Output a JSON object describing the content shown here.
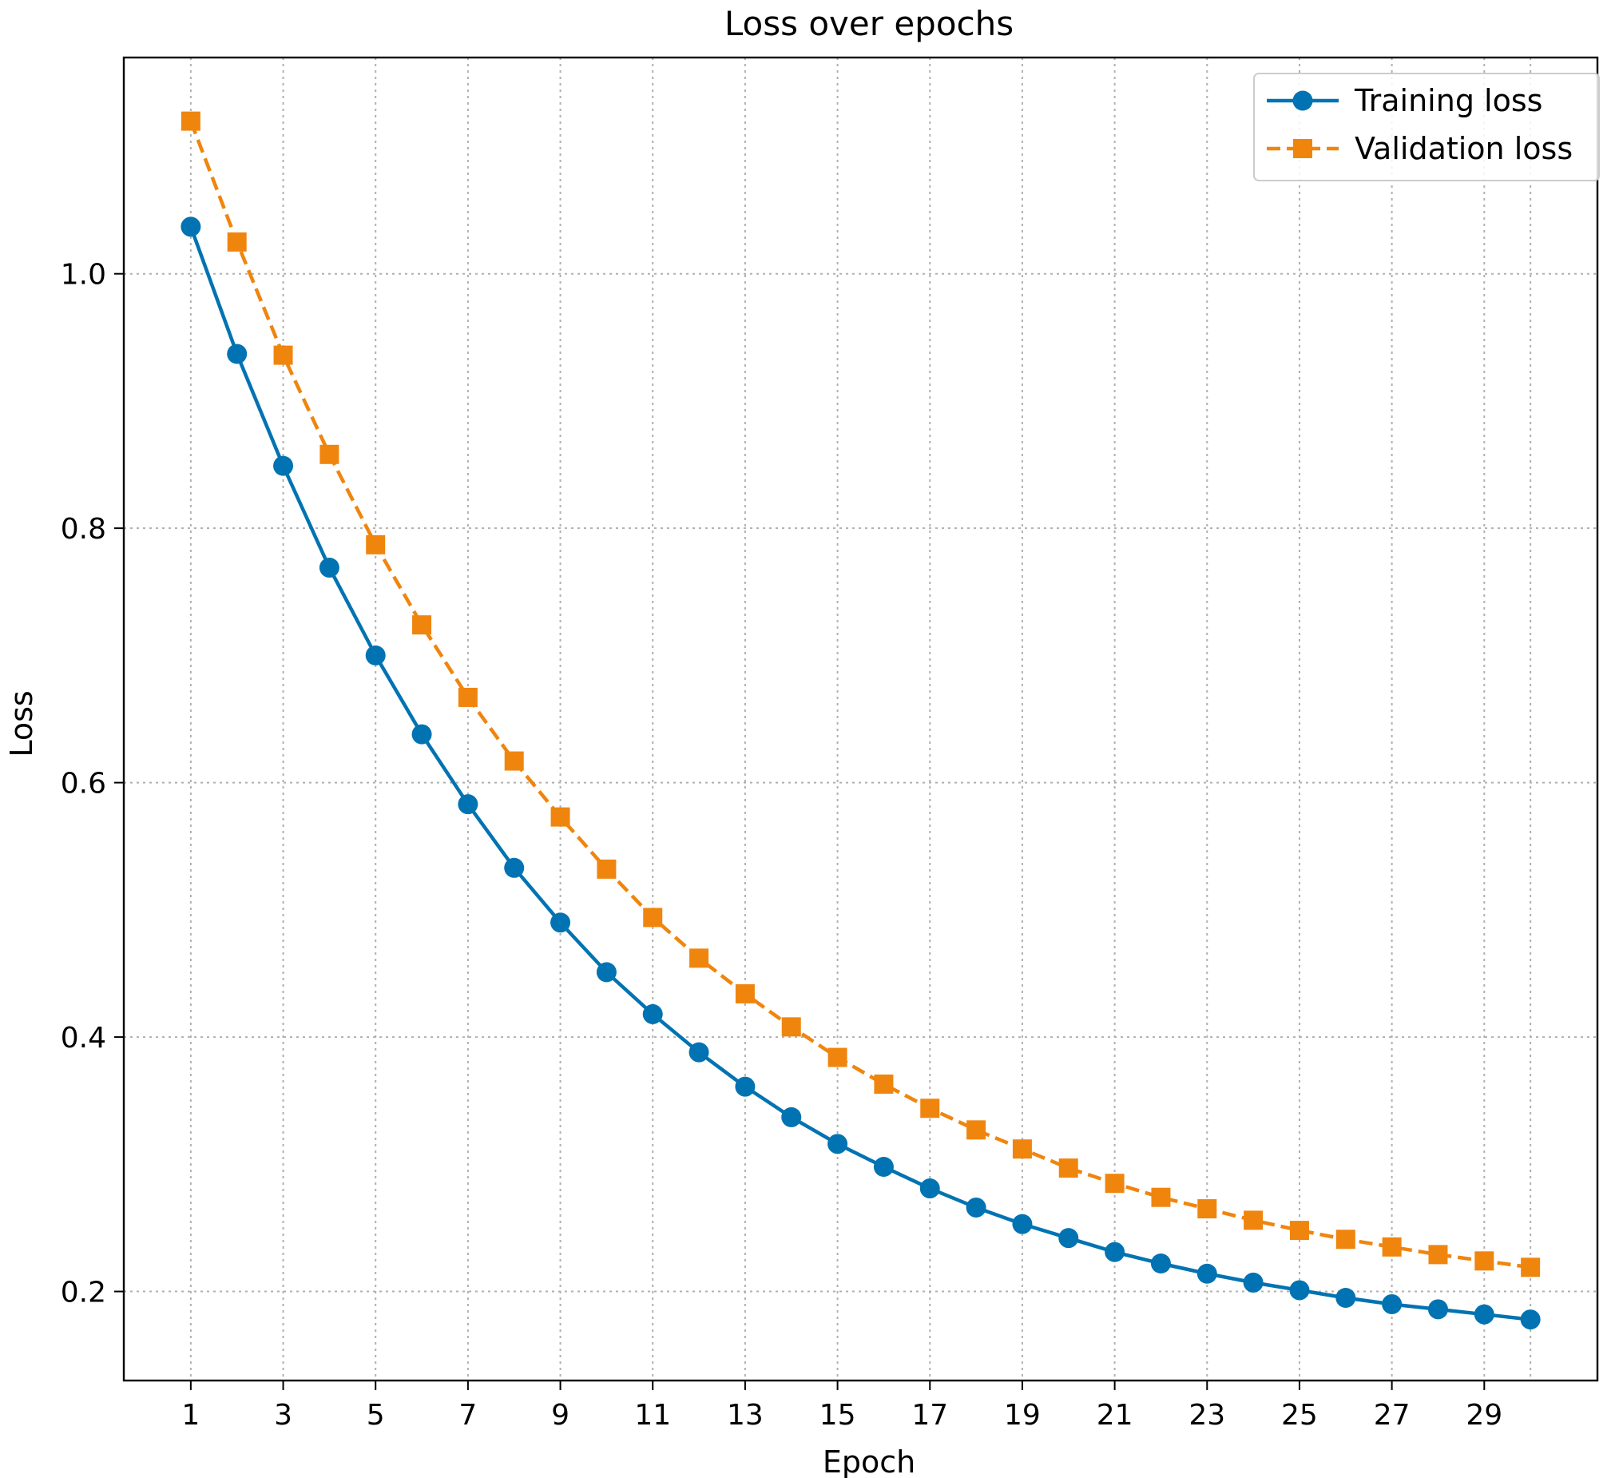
{
  "chart_data": {
    "type": "line",
    "title": "Loss over epochs",
    "xlabel": "Epoch",
    "ylabel": "Loss",
    "xlim": [
      -0.45,
      31.45
    ],
    "ylim": [
      0.13,
      1.17
    ],
    "x_ticks": [
      1,
      3,
      5,
      7,
      9,
      11,
      13,
      15,
      17,
      19,
      21,
      23,
      25,
      27,
      29
    ],
    "x_grid": [
      1,
      3,
      5,
      7,
      9,
      11,
      13,
      15,
      17,
      19,
      21,
      23,
      25,
      27,
      29,
      30
    ],
    "y_ticks": [
      0.2,
      0.4,
      0.6,
      0.8,
      1.0
    ],
    "y_tick_labels": [
      "0.2",
      "0.4",
      "0.6",
      "0.8",
      "1.0"
    ],
    "grid": true,
    "legend_position": "top-right",
    "x": [
      1,
      2,
      3,
      4,
      5,
      6,
      7,
      8,
      9,
      10,
      11,
      12,
      13,
      14,
      15,
      16,
      17,
      18,
      19,
      20,
      21,
      22,
      23,
      24,
      25,
      26,
      27,
      28,
      29,
      30
    ],
    "series": [
      {
        "name": "Training loss",
        "color": "#0173b2",
        "marker": "circle",
        "linestyle": "solid",
        "values": [
          1.037,
          0.937,
          0.849,
          0.769,
          0.7,
          0.638,
          0.583,
          0.533,
          0.49,
          0.451,
          0.418,
          0.388,
          0.361,
          0.337,
          0.316,
          0.298,
          0.281,
          0.266,
          0.253,
          0.242,
          0.231,
          0.222,
          0.214,
          0.207,
          0.201,
          0.195,
          0.19,
          0.186,
          0.182,
          0.178
        ]
      },
      {
        "name": "Validation loss",
        "color": "#f0850e",
        "marker": "square",
        "linestyle": "dashed",
        "values": [
          1.12,
          1.025,
          0.936,
          0.858,
          0.787,
          0.724,
          0.667,
          0.617,
          0.573,
          0.532,
          0.494,
          0.462,
          0.434,
          0.408,
          0.384,
          0.363,
          0.344,
          0.327,
          0.312,
          0.297,
          0.285,
          0.274,
          0.265,
          0.256,
          0.248,
          0.241,
          0.235,
          0.229,
          0.224,
          0.219
        ]
      }
    ]
  }
}
